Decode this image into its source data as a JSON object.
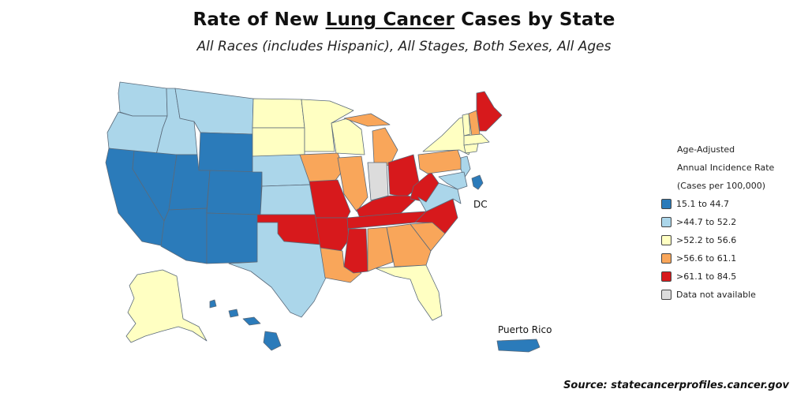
{
  "title": {
    "part1": "Rate of New ",
    "underlined": "Lung Cancer",
    "part2": " Cases by State"
  },
  "subtitle": "All Races (includes Hispanic), All Stages, Both Sexes, All Ages",
  "legend": {
    "title_lines": [
      "Age-Adjusted",
      "Annual Incidence Rate",
      "(Cases per 100,000)"
    ],
    "items": [
      {
        "label": "15.1 to 44.7",
        "color": "#2b7bba"
      },
      {
        "label": ">44.7 to 52.2",
        "color": "#abd6ea"
      },
      {
        "label": ">52.2 to 56.6",
        "color": "#ffffc2"
      },
      {
        "label": ">56.6 to 61.1",
        "color": "#f9a65a"
      },
      {
        "label": ">61.1 to 84.5",
        "color": "#d7191c"
      },
      {
        "label": "Data not available",
        "color": "#dcdcdc"
      }
    ]
  },
  "map_labels": {
    "dc": "DC",
    "puerto_rico": "Puerto Rico"
  },
  "source": "Source: statecancerprofiles.cancer.gov",
  "colors": {
    "border": "#5a6a7a"
  }
}
